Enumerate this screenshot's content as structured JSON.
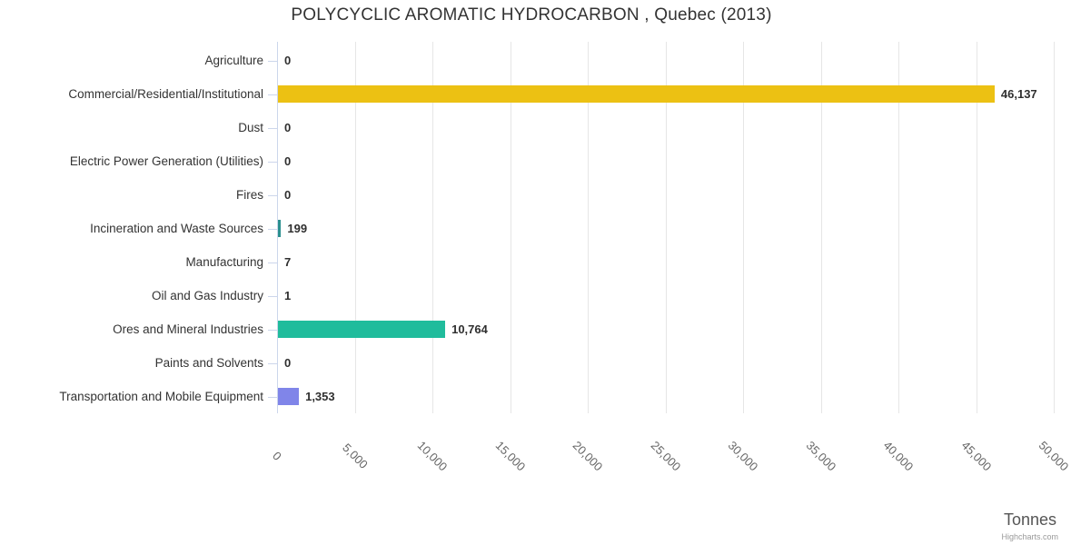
{
  "credits": "Highcharts.com",
  "colors": {
    "background": "#ffffff",
    "axis_line": "#ccd6eb",
    "gridline": "#e6e6e6",
    "title_text": "#333333",
    "category_text": "#333333",
    "value_text": "#2f2f2f",
    "xtick_text": "#666666"
  },
  "chart_data": {
    "type": "bar",
    "orientation": "horizontal",
    "title": "POLYCYCLIC AROMATIC HYDROCARBON , Quebec (2013)",
    "xlabel": "Tonnes",
    "ylabel": "",
    "xlim": [
      0,
      50000
    ],
    "grid": true,
    "legend": false,
    "categories": [
      "Agriculture",
      "Commercial/Residential/Institutional",
      "Dust",
      "Electric Power Generation (Utilities)",
      "Fires",
      "Incineration and Waste Sources",
      "Manufacturing",
      "Oil and Gas Industry",
      "Ores and Mineral Industries",
      "Paints and Solvents",
      "Transportation and Mobile Equipment"
    ],
    "values": [
      0,
      46137,
      0,
      0,
      0,
      199,
      7,
      1,
      10764,
      0,
      1353
    ],
    "value_labels": [
      "0",
      "46,137",
      "0",
      "0",
      "0",
      "199",
      "7",
      "1",
      "10,764",
      "0",
      "1,353"
    ],
    "bar_colors": [
      null,
      "#ecc113",
      null,
      null,
      null,
      "#2b908f",
      null,
      null,
      "#20bc9c",
      null,
      "#8085e9"
    ],
    "xticks": [
      0,
      5000,
      10000,
      15000,
      20000,
      25000,
      30000,
      35000,
      40000,
      45000,
      50000
    ],
    "xtick_labels": [
      "0",
      "5,000",
      "10,000",
      "15,000",
      "20,000",
      "25,000",
      "30,000",
      "35,000",
      "40,000",
      "45,000",
      "50,000"
    ]
  }
}
